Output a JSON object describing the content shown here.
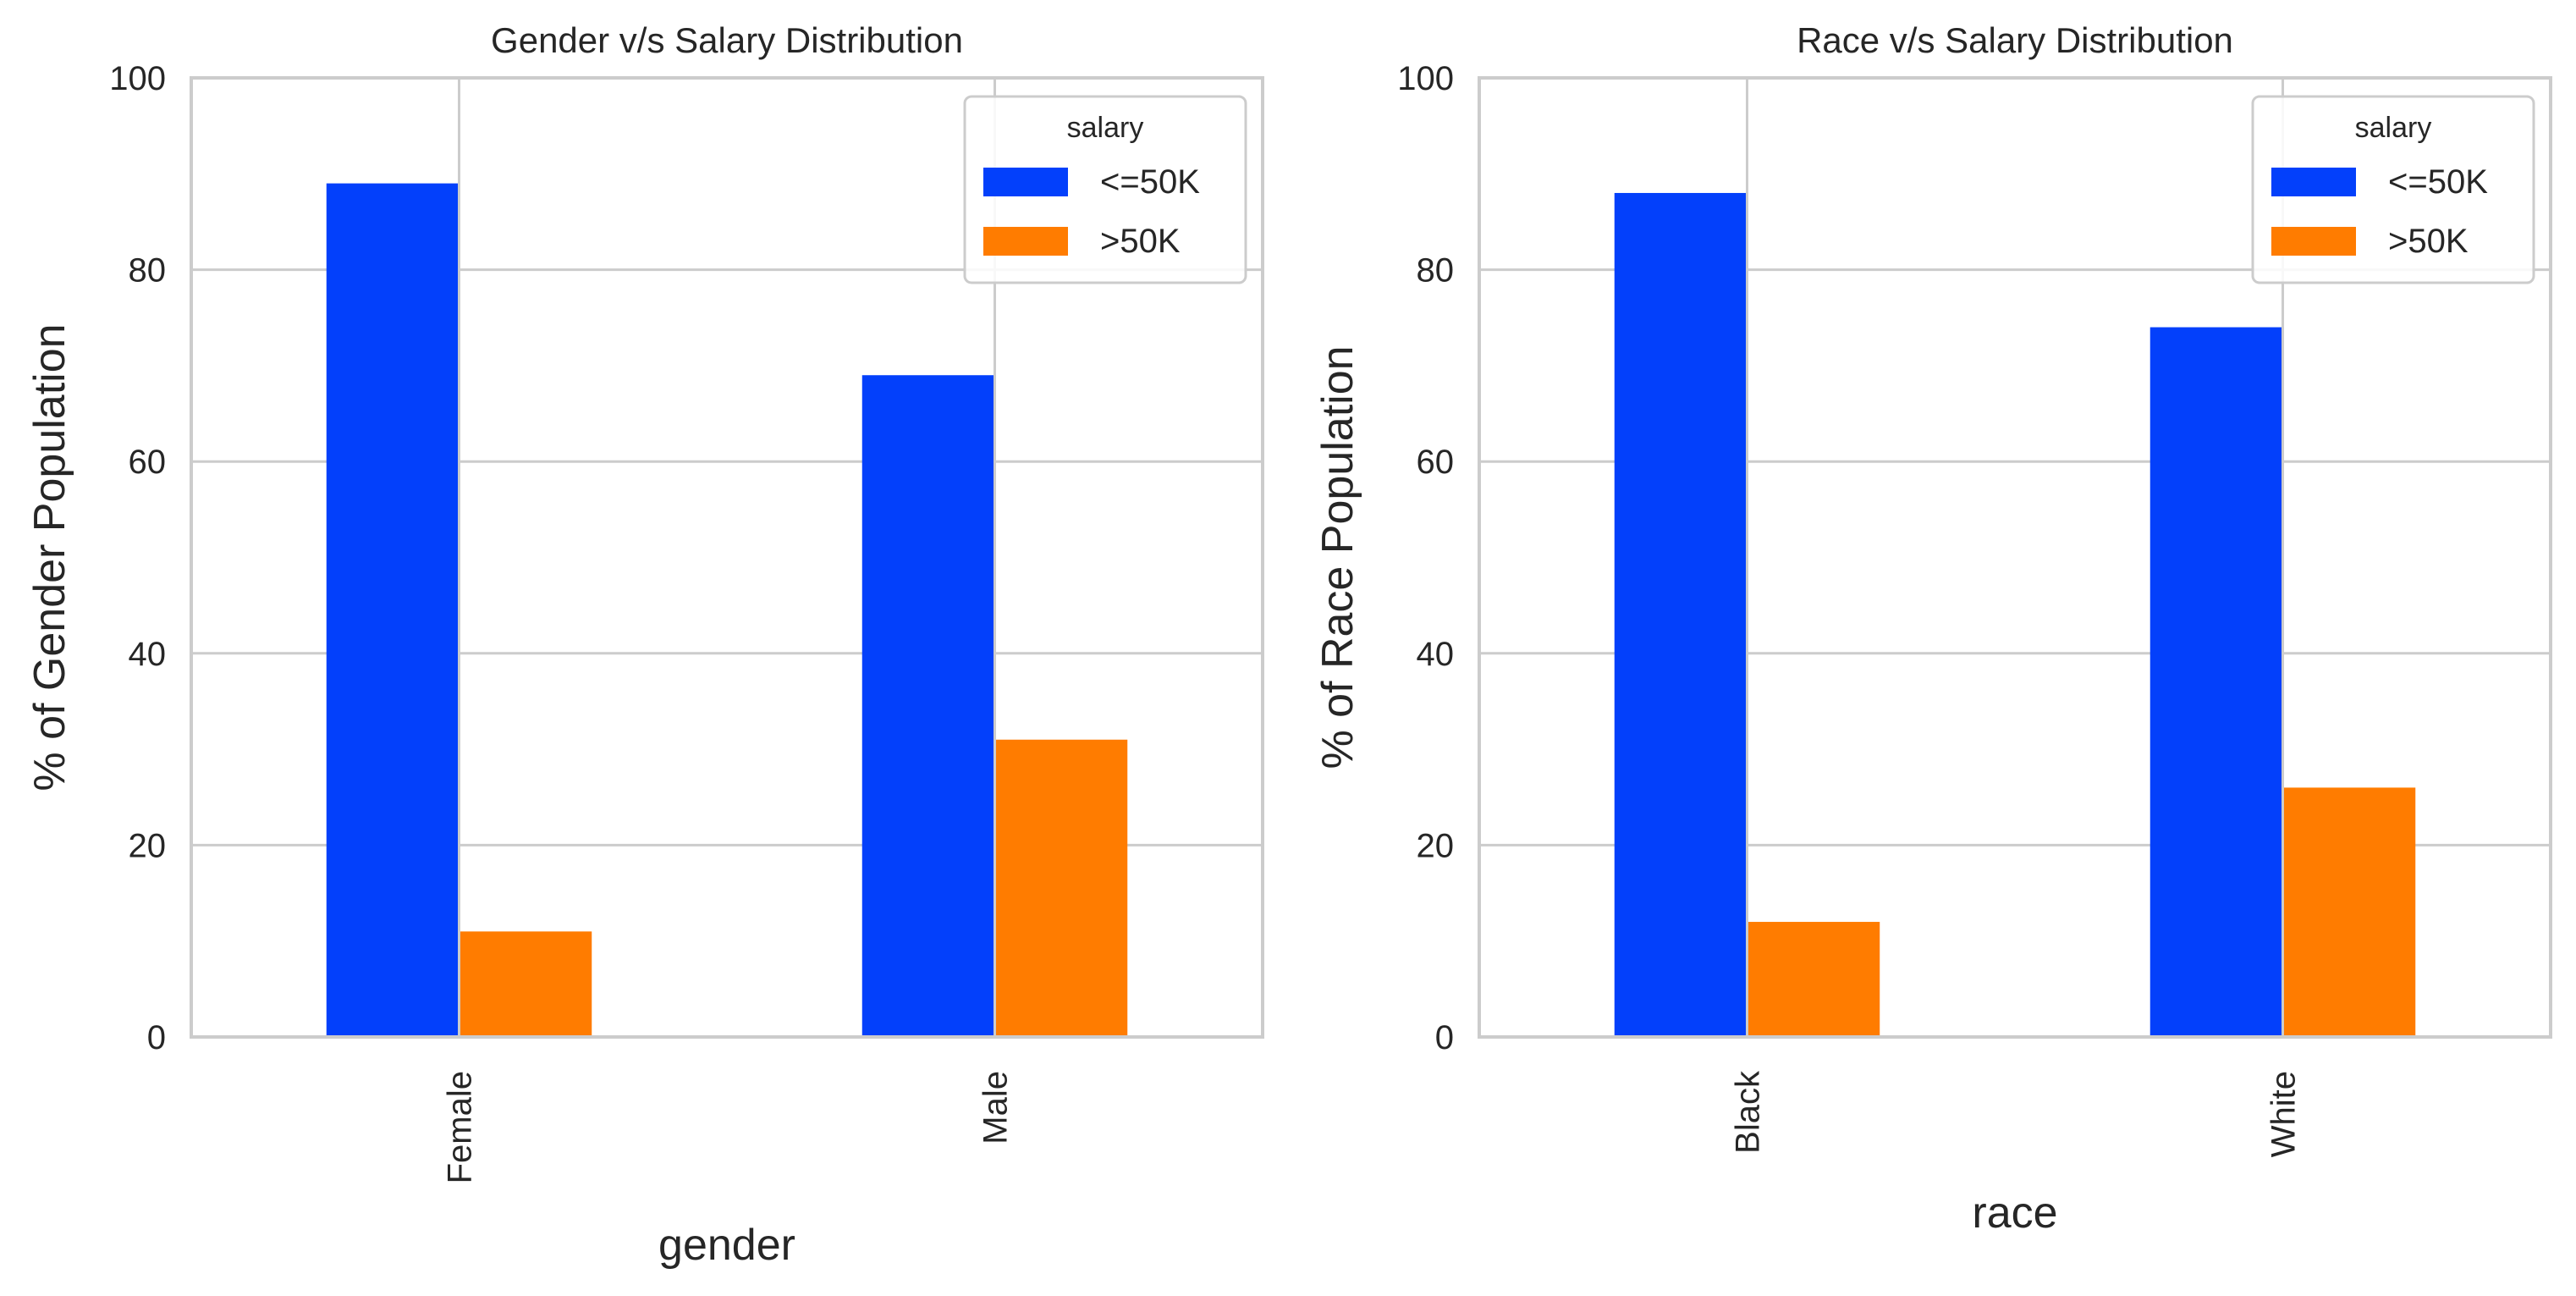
{
  "legend_title": "salary",
  "colors": {
    "series_1": "#0340fb",
    "series_2": "#ff7c00",
    "grid": "#cccccc",
    "text": "#262626"
  },
  "chart_data": [
    {
      "type": "bar",
      "title": "Gender v/s Salary Distribution",
      "xlabel": "gender",
      "ylabel": "% of Gender Population",
      "categories": [
        "Female",
        "Male"
      ],
      "series": [
        {
          "name": "<=50K",
          "values": [
            89,
            69
          ]
        },
        {
          "name": ">50K",
          "values": [
            11,
            31
          ]
        }
      ],
      "ylim": [
        0,
        100
      ],
      "yticks": [
        "0",
        "20",
        "40",
        "60",
        "80",
        "100"
      ],
      "grid": true,
      "legend_title": "salary",
      "legend_position": "top-right"
    },
    {
      "type": "bar",
      "title": "Race v/s Salary Distribution",
      "xlabel": "race",
      "ylabel": "% of Race Population",
      "categories": [
        "Black",
        "White"
      ],
      "series": [
        {
          "name": "<=50K",
          "values": [
            88,
            74
          ]
        },
        {
          "name": ">50K",
          "values": [
            12,
            26
          ]
        }
      ],
      "ylim": [
        0,
        100
      ],
      "yticks": [
        "0",
        "20",
        "40",
        "60",
        "80",
        "100"
      ],
      "grid": true,
      "legend_title": "salary",
      "legend_position": "top-right"
    }
  ]
}
